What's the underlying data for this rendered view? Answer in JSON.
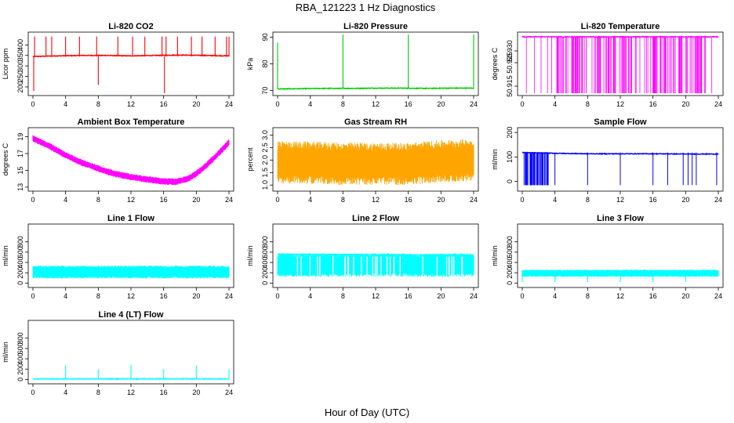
{
  "figure": {
    "title": "RBA_121223  1 Hz Diagnostics",
    "xlabel": "Hour of Day (UTC)"
  },
  "chart_data": [
    {
      "type": "line",
      "title": "Li-820 CO2",
      "xlabel": "",
      "ylabel": "Licor ppm",
      "color": "#ff0000",
      "xlim": [
        0,
        24
      ],
      "ylim": [
        170,
        450
      ],
      "yticks": [
        "200",
        "250",
        "300",
        "350",
        "400"
      ],
      "xticks": [
        "0",
        "4",
        "8",
        "12",
        "16",
        "20",
        "24"
      ],
      "series": [
        {
          "x": [
            0,
            3,
            6,
            9,
            12,
            15,
            18,
            21,
            24
          ],
          "y": [
            345,
            348,
            350,
            350,
            348,
            350,
            352,
            350,
            348
          ]
        }
      ],
      "spikes": [
        [
          0.1,
          180
        ],
        [
          0.2,
          440
        ],
        [
          1.6,
          440
        ],
        [
          2.3,
          440
        ],
        [
          4,
          440
        ],
        [
          5.7,
          440
        ],
        [
          7.8,
          440
        ],
        [
          8,
          210
        ],
        [
          10.4,
          440
        ],
        [
          12.2,
          440
        ],
        [
          13.7,
          440
        ],
        [
          15.8,
          440
        ],
        [
          16.1,
          170
        ],
        [
          16.3,
          440
        ],
        [
          17.7,
          440
        ],
        [
          19.4,
          440
        ],
        [
          20.7,
          440
        ],
        [
          22.3,
          440
        ],
        [
          23.7,
          440
        ],
        [
          24,
          440
        ]
      ]
    },
    {
      "type": "line",
      "title": "Li-820 Pressure",
      "xlabel": "",
      "ylabel": "kPa",
      "color": "#00cc00",
      "xlim": [
        0,
        24
      ],
      "ylim": [
        69,
        91
      ],
      "yticks": [
        "70",
        "80",
        "90"
      ],
      "xticks": [
        "0",
        "4",
        "8",
        "12",
        "16",
        "20",
        "24"
      ],
      "series": [
        {
          "x": [
            0,
            3,
            6,
            9,
            12,
            15,
            18,
            21,
            24
          ],
          "y": [
            70.6,
            70.7,
            70.8,
            70.8,
            70.9,
            70.9,
            70.8,
            70.9,
            70.9
          ]
        }
      ],
      "spikes": [
        [
          0,
          88
        ],
        [
          8,
          91
        ],
        [
          16,
          91
        ],
        [
          24,
          91
        ]
      ]
    },
    {
      "type": "line",
      "title": "Li-820 Temperature",
      "xlabel": "",
      "ylabel": "degrees C",
      "color": "#ff00ff",
      "xlim": [
        0,
        24
      ],
      "ylim": [
        50.912,
        50.937
      ],
      "yticks": [
        "50.915",
        "50.925",
        "50.930"
      ],
      "xticks": [
        "0",
        "4",
        "8",
        "12",
        "16",
        "20",
        "24"
      ],
      "series": [
        {
          "x": [
            0,
            24
          ],
          "y": [
            50.936,
            50.936
          ]
        }
      ],
      "dropouts": {
        "min": 50.912,
        "dense_range": [
          4.2,
          22.5
        ]
      }
    },
    {
      "type": "line",
      "title": "Ambient Box Temperature",
      "xlabel": "",
      "ylabel": "degrees C",
      "color": "#ff00ff",
      "xlim": [
        0,
        24
      ],
      "ylim": [
        12.8,
        19.8
      ],
      "yticks": [
        "13",
        "15",
        "17",
        "19"
      ],
      "xticks": [
        "0",
        "4",
        "8",
        "12",
        "16",
        "20",
        "24"
      ],
      "series": [
        {
          "x": [
            0,
            2,
            4,
            6,
            8,
            10,
            12,
            14,
            16,
            17.5,
            19,
            20,
            21,
            22,
            23,
            24
          ],
          "y": [
            18.8,
            17.9,
            16.8,
            15.9,
            15.2,
            14.6,
            14.2,
            13.9,
            13.7,
            13.6,
            14.0,
            14.6,
            15.4,
            16.3,
            17.3,
            18.3
          ]
        }
      ],
      "band": 0.8
    },
    {
      "type": "line",
      "title": "Gas Stream RH",
      "xlabel": "",
      "ylabel": "percent",
      "color": "#ffa500",
      "xlim": [
        0,
        24
      ],
      "ylim": [
        0.85,
        3.2
      ],
      "yticks": [
        "1.0",
        "1.5",
        "2.0",
        "2.5",
        "3.0"
      ],
      "xticks": [
        "0",
        "4",
        "8",
        "12",
        "16",
        "20",
        "24"
      ],
      "series": [
        {
          "x": [
            0,
            4,
            8,
            12,
            16,
            20,
            24
          ],
          "y": [
            1.9,
            1.9,
            1.85,
            1.85,
            1.85,
            1.95,
            2.0
          ]
        }
      ],
      "band": 1.7
    },
    {
      "type": "line",
      "title": "Sample Flow",
      "xlabel": "",
      "ylabel": "ml/min",
      "color": "#0000ff",
      "xlim": [
        0,
        24
      ],
      "ylim": [
        -30,
        210
      ],
      "yticks": [
        "0",
        "100",
        "200"
      ],
      "xticks": [
        "0",
        "4",
        "8",
        "12",
        "16",
        "20",
        "24"
      ],
      "series": [
        {
          "x": [
            0,
            4,
            8,
            12,
            16,
            20,
            24
          ],
          "y": [
            118,
            115,
            113,
            113,
            113,
            112,
            112
          ]
        }
      ],
      "dropouts": {
        "min": -15,
        "dense_range": [
          0.2,
          3.2
        ],
        "sparse": [
          4,
          8,
          12,
          16,
          17.8,
          19.7,
          20.3,
          20.8,
          21.3,
          23.8
        ]
      }
    },
    {
      "type": "line",
      "title": "Line 1 Flow",
      "xlabel": "",
      "ylabel": "ml/min",
      "color": "#00ffff",
      "xlim": [
        0,
        24
      ],
      "ylim": [
        -40,
        1100
      ],
      "yticks": [
        "0",
        "200",
        "400",
        "600",
        "800"
      ],
      "xticks": [
        "0",
        "4",
        "8",
        "12",
        "16",
        "20",
        "24"
      ],
      "series": [
        {
          "x": [
            0,
            24
          ],
          "y": [
            220,
            220
          ]
        }
      ],
      "band_range": [
        90,
        340
      ]
    },
    {
      "type": "line",
      "title": "Line 2 Flow",
      "xlabel": "",
      "ylabel": "ml/min",
      "color": "#00ffff",
      "xlim": [
        0,
        24
      ],
      "ylim": [
        -40,
        1100
      ],
      "yticks": [
        "0",
        "200",
        "400",
        "600",
        "800"
      ],
      "xticks": [
        "0",
        "4",
        "8",
        "12",
        "16",
        "20",
        "24"
      ],
      "series": [
        {
          "x": [
            0,
            24
          ],
          "y": [
            560,
            540
          ]
        }
      ],
      "band_range": [
        120,
        580
      ]
    },
    {
      "type": "line",
      "title": "Line 3 Flow",
      "xlabel": "",
      "ylabel": "ml/min",
      "color": "#00ffff",
      "xlim": [
        0,
        24
      ],
      "ylim": [
        -40,
        1100
      ],
      "yticks": [
        "0",
        "200",
        "400",
        "600",
        "800"
      ],
      "xticks": [
        "0",
        "4",
        "8",
        "12",
        "16",
        "20",
        "24"
      ],
      "series": [
        {
          "x": [
            0,
            24
          ],
          "y": [
            190,
            190
          ]
        }
      ],
      "band_range": [
        120,
        260
      ],
      "spikes": [
        [
          0,
          20
        ],
        [
          4,
          20
        ],
        [
          8,
          20
        ],
        [
          12,
          20
        ],
        [
          16,
          20
        ],
        [
          20,
          20
        ]
      ]
    },
    {
      "type": "line",
      "title": "Line 4 (LT) Flow",
      "xlabel": "",
      "ylabel": "ml/min",
      "color": "#00ffff",
      "xlim": [
        0,
        24
      ],
      "ylim": [
        -40,
        1100
      ],
      "yticks": [
        "0",
        "200",
        "400",
        "600",
        "800"
      ],
      "xticks": [
        "0",
        "4",
        "8",
        "12",
        "16",
        "20",
        "24"
      ],
      "series": [
        {
          "x": [
            0,
            24
          ],
          "y": [
            10,
            10
          ]
        }
      ],
      "spikes": [
        [
          4,
          280
        ],
        [
          8,
          200
        ],
        [
          12,
          280
        ],
        [
          16,
          200
        ],
        [
          20,
          270
        ],
        [
          24,
          200
        ]
      ]
    }
  ]
}
